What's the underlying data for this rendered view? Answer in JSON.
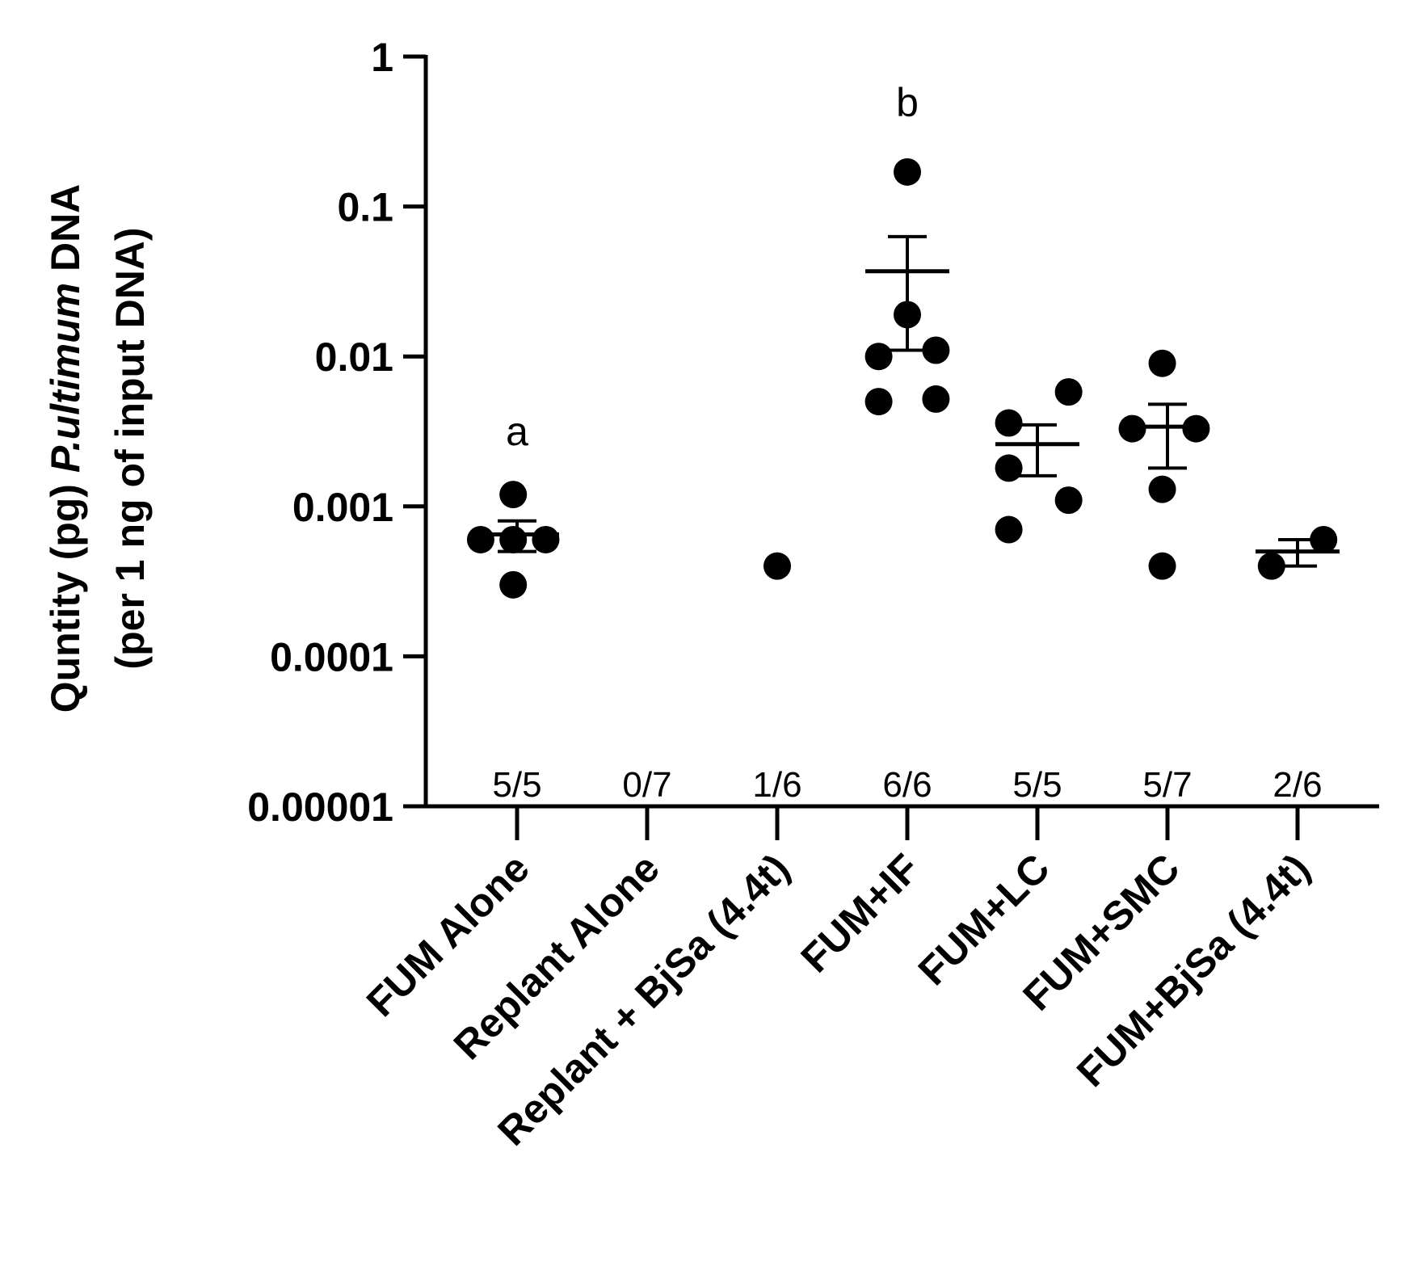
{
  "chart_data": {
    "type": "scatter",
    "yscale": "log",
    "ylim": [
      1e-05,
      1
    ],
    "ylabel": {
      "line1_prefix": "Quntity (pg) ",
      "line1_italic": "P.ultimum",
      "line1_suffix": " DNA",
      "line2": "(per 1 ng of input DNA)"
    },
    "yticks": [
      {
        "value": 1,
        "label": "1"
      },
      {
        "value": 0.1,
        "label": "0.1"
      },
      {
        "value": 0.01,
        "label": "0.01"
      },
      {
        "value": 0.001,
        "label": "0.001"
      },
      {
        "value": 0.0001,
        "label": "0.0001"
      },
      {
        "value": 1e-05,
        "label": "0.00001"
      }
    ],
    "categories": [
      "FUM Alone",
      "Replant Alone",
      "Replant + BjSa (4.4t)",
      "FUM+IF",
      "FUM+LC",
      "FUM+SMC",
      "FUM+BjSa (4.4t)"
    ],
    "detection_counts": [
      "5/5",
      "0/7",
      "1/6",
      "6/6",
      "5/5",
      "5/7",
      "2/6"
    ],
    "significance": [
      {
        "category": 0,
        "label": "a",
        "y": 0.0032
      },
      {
        "category": 3,
        "label": "b",
        "y": 0.5
      }
    ],
    "groups": [
      {
        "points": [
          {
            "y": 0.0012,
            "dx": -0.03
          },
          {
            "y": 0.0006,
            "dx": -0.28
          },
          {
            "y": 0.0006,
            "dx": -0.03
          },
          {
            "y": 0.0006,
            "dx": 0.22
          },
          {
            "y": 0.0003,
            "dx": -0.03
          }
        ],
        "mean": 0.00065,
        "error": [
          0.0005,
          0.0008
        ]
      },
      {
        "points": [],
        "mean": null,
        "error": null
      },
      {
        "points": [
          {
            "y": 0.0004,
            "dx": 0.0
          }
        ],
        "mean": null,
        "error": null
      },
      {
        "points": [
          {
            "y": 0.17,
            "dx": 0.0
          },
          {
            "y": 0.019,
            "dx": 0.0
          },
          {
            "y": 0.01,
            "dx": -0.22
          },
          {
            "y": 0.011,
            "dx": 0.22
          },
          {
            "y": 0.005,
            "dx": -0.22
          },
          {
            "y": 0.0052,
            "dx": 0.22
          }
        ],
        "mean": 0.037,
        "error": [
          0.011,
          0.063
        ]
      },
      {
        "points": [
          {
            "y": 0.0058,
            "dx": 0.24
          },
          {
            "y": 0.0036,
            "dx": -0.22
          },
          {
            "y": 0.0018,
            "dx": -0.22
          },
          {
            "y": 0.0011,
            "dx": 0.24
          },
          {
            "y": 0.0007,
            "dx": -0.22
          }
        ],
        "mean": 0.0026,
        "error": [
          0.0016,
          0.0035
        ]
      },
      {
        "points": [
          {
            "y": 0.009,
            "dx": -0.04
          },
          {
            "y": 0.0033,
            "dx": -0.27
          },
          {
            "y": 0.0033,
            "dx": 0.22
          },
          {
            "y": 0.0013,
            "dx": -0.04
          },
          {
            "y": 0.0004,
            "dx": -0.04
          }
        ],
        "mean": 0.0034,
        "error": [
          0.0018,
          0.0048
        ]
      },
      {
        "points": [
          {
            "y": 0.0004,
            "dx": -0.2
          },
          {
            "y": 0.0006,
            "dx": 0.2
          }
        ],
        "mean": 0.0005,
        "error": [
          0.0004,
          0.0006
        ]
      }
    ]
  }
}
